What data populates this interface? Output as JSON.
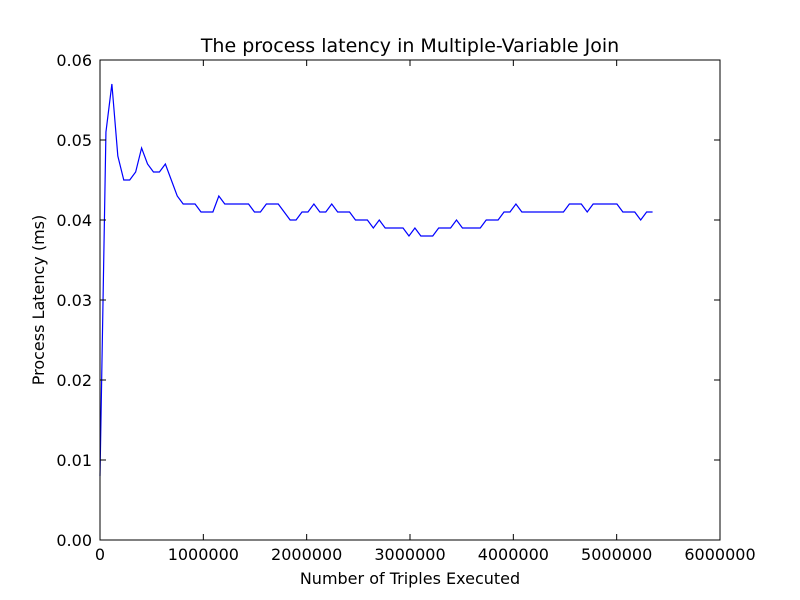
{
  "chart_data": {
    "type": "line",
    "title": "The process latency in Multiple-Variable Join",
    "xlabel": "Number of Triples Executed",
    "ylabel": "Process Latency (ms)",
    "x": [
      0,
      57500,
      115000,
      172500,
      230000,
      287500,
      345000,
      402500,
      460000,
      517500,
      575000,
      632500,
      690000,
      747500,
      805000,
      862500,
      920000,
      977500,
      1035000,
      1092500,
      1150000,
      1207500,
      1265000,
      1322500,
      1380000,
      1437500,
      1495000,
      1552500,
      1610000,
      1667500,
      1725000,
      1782500,
      1840000,
      1897500,
      1955000,
      2012500,
      2070000,
      2127500,
      2185000,
      2242500,
      2300000,
      2357500,
      2415000,
      2472500,
      2530000,
      2587500,
      2645000,
      2702500,
      2760000,
      2817500,
      2875000,
      2932500,
      2990000,
      3047500,
      3105000,
      3162500,
      3220000,
      3277500,
      3335000,
      3392500,
      3450000,
      3507500,
      3565000,
      3622500,
      3680000,
      3737500,
      3795000,
      3852500,
      3910000,
      3967500,
      4025000,
      4082500,
      4140000,
      4197500,
      4255000,
      4312500,
      4370000,
      4427500,
      4485000,
      4542500,
      4600000,
      4657500,
      4715000,
      4772500,
      4830000,
      4887500,
      4945000,
      5002500,
      5060000,
      5117500,
      5175000,
      5232500,
      5290000,
      5347500
    ],
    "series": [
      {
        "color": "#0000ff",
        "values": [
          0.008,
          0.051,
          0.057,
          0.048,
          0.045,
          0.045,
          0.046,
          0.049,
          0.047,
          0.046,
          0.046,
          0.047,
          0.045,
          0.043,
          0.042,
          0.042,
          0.042,
          0.041,
          0.041,
          0.041,
          0.043,
          0.042,
          0.042,
          0.042,
          0.042,
          0.042,
          0.041,
          0.041,
          0.042,
          0.042,
          0.042,
          0.041,
          0.04,
          0.04,
          0.041,
          0.041,
          0.042,
          0.041,
          0.041,
          0.042,
          0.041,
          0.041,
          0.041,
          0.04,
          0.04,
          0.04,
          0.039,
          0.04,
          0.039,
          0.039,
          0.039,
          0.039,
          0.038,
          0.039,
          0.038,
          0.038,
          0.038,
          0.039,
          0.039,
          0.039,
          0.04,
          0.039,
          0.039,
          0.039,
          0.039,
          0.04,
          0.04,
          0.04,
          0.041,
          0.041,
          0.042,
          0.041,
          0.041,
          0.041,
          0.041,
          0.041,
          0.041,
          0.041,
          0.041,
          0.042,
          0.042,
          0.042,
          0.041,
          0.042,
          0.042,
          0.042,
          0.042,
          0.042,
          0.041,
          0.041,
          0.041,
          0.04,
          0.041,
          0.041
        ]
      }
    ],
    "xlim": [
      0,
      6000000
    ],
    "xticks": [
      0,
      1000000,
      2000000,
      3000000,
      4000000,
      5000000,
      6000000
    ],
    "ylim": [
      0,
      0.06
    ],
    "yticks": [
      {
        "value": 0,
        "label": "0.00"
      },
      0.01,
      0.02,
      0.03,
      0.04,
      0.05,
      0.06
    ]
  }
}
